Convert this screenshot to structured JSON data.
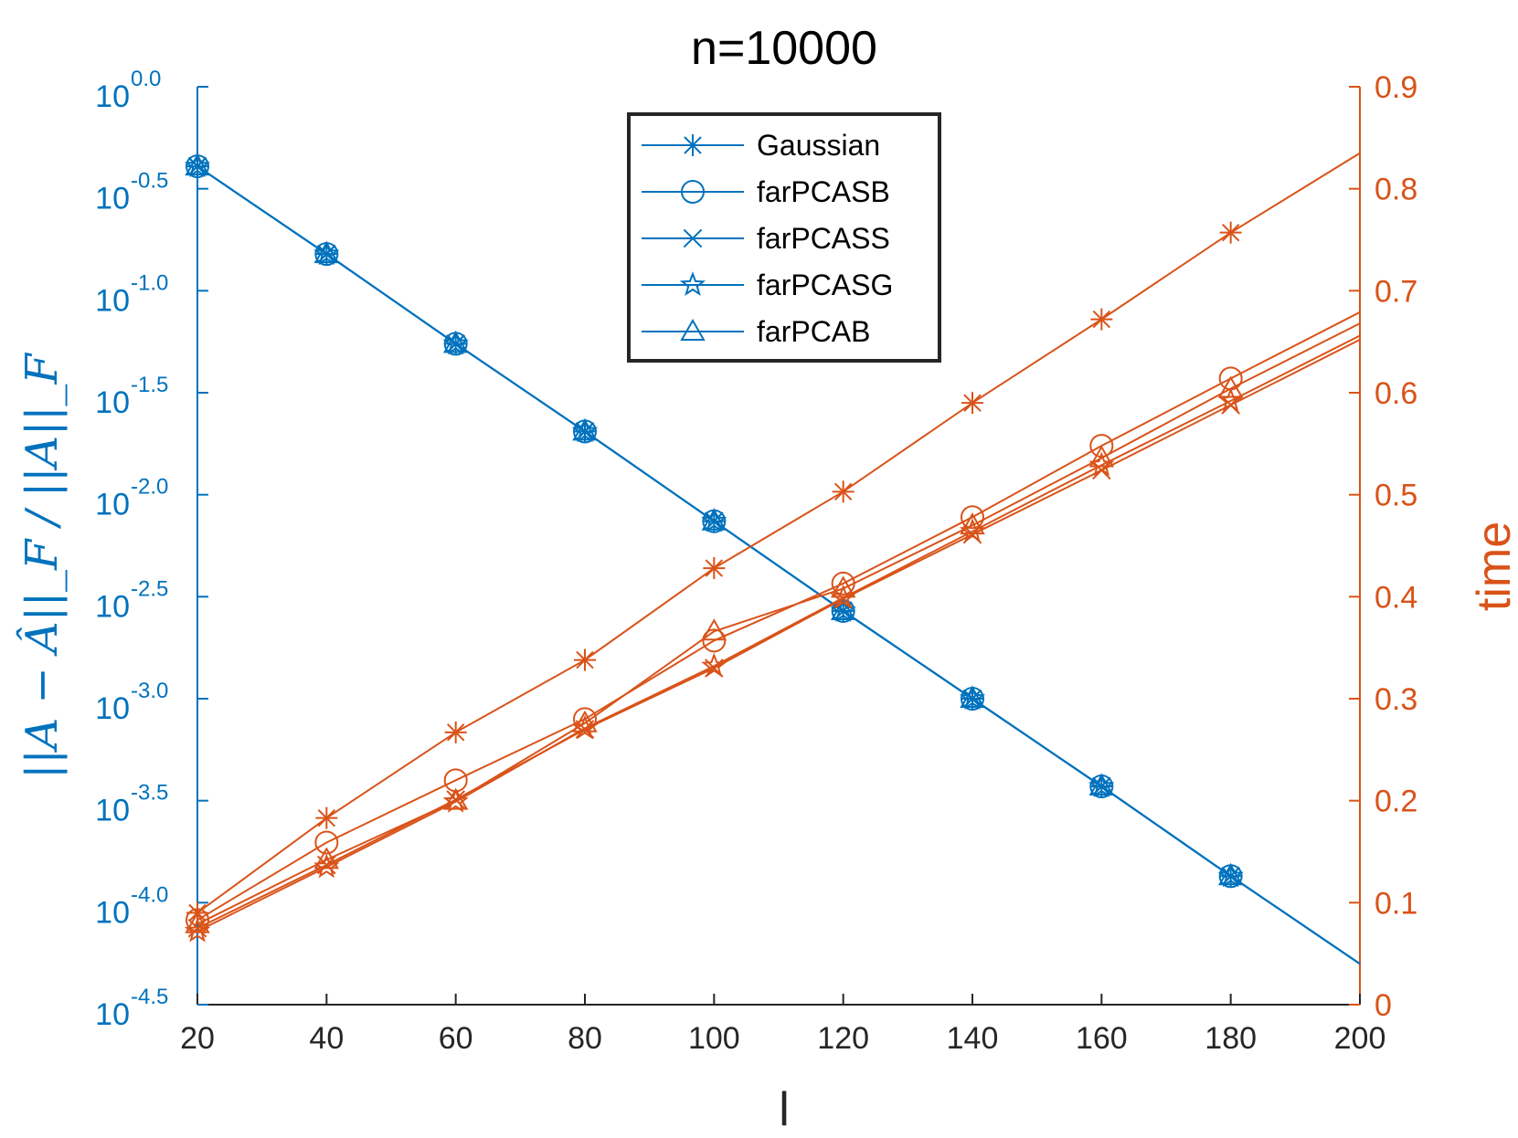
{
  "chart_data": {
    "type": "line",
    "title": "n=10000",
    "xlabel": "l",
    "ylabel_left": "||A − Â||_F / ||A||_F",
    "ylabel_right": "time",
    "x": [
      20,
      40,
      60,
      80,
      100,
      120,
      140,
      160,
      180,
      200
    ],
    "xlim": [
      20,
      200
    ],
    "xticks": [
      "20",
      "40",
      "60",
      "80",
      "100",
      "120",
      "140",
      "160",
      "180",
      "200"
    ],
    "yleft_scale": "log10",
    "yleft_lim_exp": [
      -4.5,
      0.0
    ],
    "yleft_ticks": [
      {
        "exp": 0.0,
        "base": "10",
        "sup": "0.0"
      },
      {
        "exp": -0.5,
        "base": "10",
        "sup": "-0.5"
      },
      {
        "exp": -1.0,
        "base": "10",
        "sup": "-1.0"
      },
      {
        "exp": -1.5,
        "base": "10",
        "sup": "-1.5"
      },
      {
        "exp": -2.0,
        "base": "10",
        "sup": "-2.0"
      },
      {
        "exp": -2.5,
        "base": "10",
        "sup": "-2.5"
      },
      {
        "exp": -3.0,
        "base": "10",
        "sup": "-3.0"
      },
      {
        "exp": -3.5,
        "base": "10",
        "sup": "-3.5"
      },
      {
        "exp": -4.0,
        "base": "10",
        "sup": "-4.0"
      },
      {
        "exp": -4.5,
        "base": "10",
        "sup": "-4.5"
      }
    ],
    "yright_lim": [
      0,
      0.9
    ],
    "yright_ticks": [
      "0",
      "0.1",
      "0.2",
      "0.3",
      "0.4",
      "0.5",
      "0.6",
      "0.7",
      "0.8",
      "0.9"
    ],
    "legend_position": "top-center",
    "colors": {
      "error": "#0072BD",
      "time": "#D95319",
      "axis_text": "#262626"
    },
    "error_series": [
      {
        "name": "Gaussian",
        "marker": "asterisk",
        "x": [
          20,
          40,
          60,
          80,
          100,
          120,
          140,
          160,
          180,
          200
        ],
        "log10_values": [
          -0.39,
          -0.82,
          -1.26,
          -1.69,
          -2.13,
          -2.57,
          -3.0,
          -3.43,
          -3.87,
          -4.3
        ]
      },
      {
        "name": "farPCASB",
        "marker": "circle",
        "x": [
          20,
          40,
          60,
          80,
          100,
          120,
          140,
          160,
          180,
          200
        ],
        "log10_values": [
          -0.39,
          -0.82,
          -1.26,
          -1.69,
          -2.13,
          -2.57,
          -3.0,
          -3.43,
          -3.87,
          -4.3
        ]
      },
      {
        "name": "farPCASS",
        "marker": "x",
        "x": [
          20,
          40,
          60,
          80,
          100,
          120,
          140,
          160,
          180,
          200
        ],
        "log10_values": [
          -0.39,
          -0.82,
          -1.26,
          -1.69,
          -2.13,
          -2.57,
          -3.0,
          -3.43,
          -3.87,
          -4.3
        ]
      },
      {
        "name": "farPCASG",
        "marker": "star",
        "x": [
          20,
          40,
          60,
          80,
          100,
          120,
          140,
          160,
          180,
          200
        ],
        "log10_values": [
          -0.39,
          -0.82,
          -1.26,
          -1.69,
          -2.13,
          -2.57,
          -3.0,
          -3.43,
          -3.87,
          -4.3
        ]
      },
      {
        "name": "farPCAB",
        "marker": "triangle",
        "x": [
          20,
          40,
          60,
          80,
          100,
          120,
          140,
          160,
          180,
          200
        ],
        "log10_values": [
          -0.39,
          -0.82,
          -1.26,
          -1.69,
          -2.13,
          -2.57,
          -3.0,
          -3.43,
          -3.87,
          -4.3
        ]
      }
    ],
    "time_series": [
      {
        "name": "Gaussian",
        "marker": "asterisk",
        "x": [
          20,
          40,
          60,
          80,
          100,
          120,
          140,
          160,
          180,
          200
        ],
        "values": [
          0.09,
          0.183,
          0.267,
          0.338,
          0.428,
          0.503,
          0.59,
          0.672,
          0.757,
          0.835
        ]
      },
      {
        "name": "farPCASB",
        "marker": "circle",
        "x": [
          20,
          40,
          60,
          80,
          100,
          120,
          140,
          160,
          180,
          200
        ],
        "values": [
          0.083,
          0.159,
          0.22,
          0.28,
          0.357,
          0.413,
          0.478,
          0.548,
          0.614,
          0.679
        ]
      },
      {
        "name": "farPCASS",
        "marker": "x",
        "x": [
          20,
          40,
          60,
          80,
          100,
          120,
          140,
          160,
          180,
          200
        ],
        "values": [
          0.075,
          0.137,
          0.201,
          0.27,
          0.33,
          0.398,
          0.461,
          0.524,
          0.588,
          0.652
        ]
      },
      {
        "name": "farPCASG",
        "marker": "star",
        "x": [
          20,
          40,
          60,
          80,
          100,
          120,
          140,
          160,
          180,
          200
        ],
        "values": [
          0.072,
          0.135,
          0.199,
          0.271,
          0.332,
          0.399,
          0.464,
          0.529,
          0.592,
          0.656
        ]
      },
      {
        "name": "farPCAB",
        "marker": "triangle",
        "x": [
          20,
          40,
          60,
          80,
          100,
          120,
          140,
          160,
          180,
          200
        ],
        "values": [
          0.079,
          0.142,
          0.2,
          0.276,
          0.366,
          0.408,
          0.47,
          0.536,
          0.604,
          0.668
        ]
      }
    ],
    "legend": [
      "Gaussian",
      "farPCASB",
      "farPCASS",
      "farPCASG",
      "farPCAB"
    ]
  }
}
